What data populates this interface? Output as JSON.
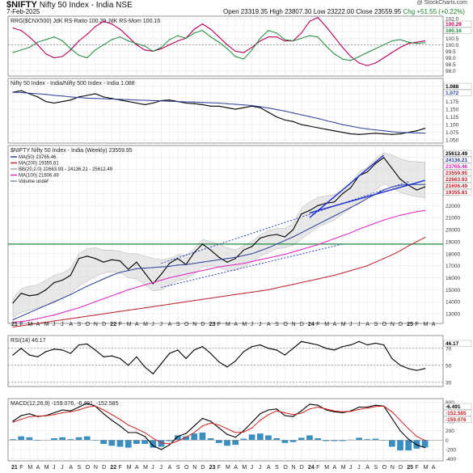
{
  "header": {
    "symbol": "$NIFTY",
    "name": "Nifty 50 Index - India NSE",
    "date": "7-Feb-2025",
    "watermark": "@ StockCharts.com",
    "open": "Open 23319.35",
    "high": "High 23807.30",
    "low": "Low 23222.00",
    "close": "Close 23559.95",
    "chg": "Chg +51.55 (+0.22%)",
    "chg_color": "#1a7f2a"
  },
  "x_axis": {
    "labels": [
      "21",
      "F",
      "M",
      "A",
      "M",
      "J",
      "J",
      "A",
      "S",
      "O",
      "N",
      "D",
      "22",
      "F",
      "M",
      "A",
      "M",
      "J",
      "J",
      "A",
      "S",
      "O",
      "N",
      "D",
      "23",
      "F",
      "M",
      "A",
      "M",
      "J",
      "J",
      "A",
      "S",
      "O",
      "N",
      "D",
      "24",
      "F",
      "M",
      "A",
      "M",
      "J",
      "J",
      "A",
      "S",
      "O",
      "N",
      "D",
      "25",
      "F",
      "M",
      "A"
    ],
    "bold": [
      "21",
      "22",
      "23",
      "24",
      "25"
    ]
  },
  "chart_data": [
    {
      "type": "line",
      "title": "RRG($CNX500) JdK RS-Ratio 100.29 JdK RS-Mom 100.16",
      "ylim": [
        97.6,
        102.2
      ],
      "yticks": [
        "102.0",
        "101.5",
        "101.0",
        "100.5",
        "100.0",
        "99.5",
        "99.0",
        "98.5",
        "98.0"
      ],
      "ytick_values": [
        102.0,
        101.5,
        101.0,
        100.5,
        100.0,
        99.5,
        99.0,
        98.5,
        98.0
      ],
      "last_labels": [
        "100.29",
        "100.16"
      ],
      "series": [
        {
          "name": "JdK RS-Ratio",
          "color": "#b8005a",
          "values": [
            101.3,
            101.1,
            100.6,
            100.0,
            99.3,
            99.0,
            99.1,
            99.6,
            100.3,
            100.8,
            101.4,
            101.8,
            101.6,
            101.2,
            100.6,
            100.0,
            99.6,
            99.5,
            99.7,
            100.0,
            100.3,
            100.5,
            101.2,
            101.6,
            101.2,
            100.6,
            100.0,
            99.5,
            99.4,
            99.8,
            100.3,
            100.6,
            100.6,
            100.3,
            100.3,
            100.9,
            101.8,
            102.1,
            101.4,
            100.6,
            99.8,
            99.1,
            98.6,
            98.4,
            98.6,
            99.0,
            99.4,
            99.8,
            100.1,
            100.2,
            100.3
          ]
        },
        {
          "name": "JdK RS-Mom",
          "color": "#1a8a3a",
          "values": [
            99.4,
            99.6,
            99.8,
            100.2,
            100.4,
            100.6,
            100.3,
            99.7,
            99.2,
            99.0,
            99.6,
            100.0,
            100.4,
            100.6,
            100.3,
            100.1,
            99.9,
            99.5,
            99.8,
            100.4,
            100.7,
            100.5,
            100.9,
            101.1,
            100.6,
            100.2,
            99.7,
            99.1,
            98.9,
            99.6,
            100.5,
            101.1,
            100.9,
            100.4,
            100.3,
            100.5,
            100.7,
            100.6,
            99.9,
            99.3,
            98.9,
            98.8,
            99.1,
            99.4,
            99.7,
            100.0,
            100.3,
            100.4,
            100.2,
            100.1,
            100.16
          ]
        }
      ],
      "reference_lines": [
        100.0
      ]
    },
    {
      "type": "line",
      "title": "Nifty 50 Index - India/Nifty 500 Index - India 1.088",
      "ylim": [
        1.04,
        1.25
      ],
      "yticks": [
        "1.225",
        "1.200",
        "1.175",
        "1.150",
        "1.125",
        "1.100",
        "1.075",
        "1.050"
      ],
      "ytick_values": [
        1.225,
        1.2,
        1.175,
        1.15,
        1.125,
        1.1,
        1.075,
        1.05
      ],
      "last_labels": [
        "1.088",
        "1.072"
      ],
      "series": [
        {
          "name": "Nifty 50 Index - India/Nifty 500 Index - India",
          "color": "#000000",
          "values": [
            1.205,
            1.21,
            1.2,
            1.19,
            1.175,
            1.17,
            1.175,
            1.18,
            1.19,
            1.195,
            1.2,
            1.19,
            1.185,
            1.18,
            1.175,
            1.17,
            1.165,
            1.17,
            1.178,
            1.18,
            1.175,
            1.17,
            1.168,
            1.165,
            1.16,
            1.16,
            1.155,
            1.15,
            1.155,
            1.16,
            1.155,
            1.14,
            1.125,
            1.115,
            1.11,
            1.1,
            1.095,
            1.09,
            1.085,
            1.08,
            1.075,
            1.07,
            1.068,
            1.07,
            1.072,
            1.07,
            1.068,
            1.07,
            1.075,
            1.08,
            1.088
          ]
        },
        {
          "name": "MA(50) 1.072",
          "color": "#2b3d9a",
          "values": [
            1.205,
            1.204,
            1.202,
            1.2,
            1.198,
            1.195,
            1.193,
            1.19,
            1.188,
            1.186,
            1.185,
            1.184,
            1.183,
            1.182,
            1.181,
            1.18,
            1.179,
            1.178,
            1.177,
            1.176,
            1.175,
            1.174,
            1.173,
            1.172,
            1.171,
            1.17,
            1.168,
            1.166,
            1.164,
            1.162,
            1.158,
            1.154,
            1.149,
            1.144,
            1.138,
            1.132,
            1.126,
            1.12,
            1.113,
            1.107,
            1.1,
            1.095,
            1.09,
            1.086,
            1.083,
            1.08,
            1.077,
            1.075,
            1.074,
            1.073,
            1.072
          ]
        }
      ]
    },
    {
      "type": "line",
      "title": "$NIFTY Nifty 50 Index - India (Weekly) 23559.95",
      "legend": [
        {
          "label": "MA(50) 23765.46",
          "color": "#2b3d9a"
        },
        {
          "label": "MA(200) 19355.81",
          "color": "#c0202a"
        },
        {
          "label": "BB(20,2.0) 22663.93 - 24136.21 - 25612.49",
          "color": "#a0a0a0"
        },
        {
          "label": "MA(100) 21606.49",
          "color": "#e020c0"
        },
        {
          "label": "Volume undef",
          "color": "#7a8a9a"
        }
      ],
      "ylim": [
        12200,
        27000
      ],
      "yticks": [
        "26000",
        "25000",
        "24000",
        "23000",
        "22000",
        "21000",
        "20000",
        "19000",
        "18000",
        "17000",
        "16000",
        "15000",
        "14000",
        "13000"
      ],
      "ytick_values": [
        26000,
        25000,
        24000,
        23000,
        22000,
        21000,
        20000,
        19000,
        18000,
        17000,
        16000,
        15000,
        14000,
        13000
      ],
      "last_labels": [
        "25612.49",
        "24136.21",
        "23765.46",
        "23559.95",
        "22663.93",
        "21606.49",
        "19355.81"
      ],
      "series": [
        {
          "name": "Close",
          "color": "#000000",
          "values": [
            13900,
            14700,
            14500,
            14600,
            15000,
            15600,
            15800,
            16200,
            17600,
            17800,
            17600,
            17300,
            17500,
            17400,
            16700,
            17300,
            16400,
            15500,
            16300,
            17200,
            17600,
            17100,
            18100,
            18800,
            18300,
            17700,
            17300,
            17600,
            18300,
            18600,
            19300,
            19500,
            19600,
            19400,
            20000,
            21300,
            21600,
            22000,
            22200,
            22300,
            23000,
            23500,
            24500,
            24800,
            25500,
            26000,
            25100,
            24200,
            23700,
            23300,
            23559.95
          ]
        },
        {
          "name": "MA(50)",
          "color": "#2b3d9a",
          "values": [
            12500,
            12800,
            13100,
            13400,
            13700,
            14000,
            14300,
            14600,
            14950,
            15300,
            15600,
            15900,
            16200,
            16450,
            16600,
            16750,
            16800,
            16850,
            16900,
            16950,
            17050,
            17100,
            17200,
            17300,
            17400,
            17500,
            17600,
            17700,
            17850,
            18000,
            18250,
            18500,
            18800,
            19100,
            19400,
            19750,
            20100,
            20450,
            20800,
            21150,
            21500,
            21850,
            22200,
            22600,
            22950,
            23300,
            23550,
            23700,
            23750,
            23760,
            23765
          ]
        },
        {
          "name": "MA(100)",
          "color": "#e020c0",
          "values": [
            12300,
            12350,
            12450,
            12600,
            12750,
            12900,
            13100,
            13300,
            13500,
            13750,
            14000,
            14250,
            14500,
            14750,
            15000,
            15200,
            15400,
            15600,
            15800,
            16000,
            16150,
            16300,
            16450,
            16600,
            16750,
            16900,
            17000,
            17100,
            17200,
            17350,
            17500,
            17650,
            17800,
            17950,
            18150,
            18350,
            18550,
            18750,
            19000,
            19250,
            19500,
            19750,
            20050,
            20300,
            20550,
            20800,
            21000,
            21200,
            21350,
            21500,
            21606
          ]
        },
        {
          "name": "MA(200)",
          "color": "#c0202a",
          "values": [
            11900,
            12000,
            12100,
            12200,
            12300,
            12400,
            12500,
            12600,
            12700,
            12800,
            12900,
            13000,
            13100,
            13200,
            13300,
            13400,
            13500,
            13600,
            13700,
            13800,
            13900,
            14000,
            14100,
            14200,
            14300,
            14400,
            14500,
            14600,
            14700,
            14800,
            14900,
            15000,
            15150,
            15300,
            15450,
            15600,
            15750,
            15900,
            16050,
            16200,
            16400,
            16600,
            16800,
            17000,
            17300,
            17600,
            17900,
            18250,
            18650,
            19000,
            19355
          ]
        }
      ],
      "bollinger_upper": [
        14300,
        15100,
        15300,
        15400,
        15800,
        16200,
        16400,
        16800,
        18000,
        18400,
        18500,
        18300,
        18300,
        18200,
        18000,
        18000,
        17800,
        17600,
        17500,
        17600,
        17900,
        17900,
        18400,
        19200,
        19000,
        18800,
        18500,
        18300,
        18700,
        19000,
        19600,
        19900,
        20100,
        20100,
        20500,
        21800,
        22300,
        22700,
        22800,
        22900,
        23300,
        23800,
        24800,
        25200,
        25900,
        26400,
        26200,
        25900,
        25700,
        25650,
        25612
      ],
      "bollinger_lower": [
        12700,
        13100,
        13300,
        13500,
        13700,
        13900,
        14300,
        14700,
        15300,
        15700,
        16100,
        16400,
        16500,
        16400,
        16000,
        15900,
        15400,
        14900,
        15000,
        15400,
        15800,
        15900,
        16300,
        16900,
        17000,
        16900,
        16600,
        16600,
        16900,
        17300,
        17800,
        18100,
        18400,
        18500,
        18700,
        19200,
        19700,
        20200,
        20500,
        20800,
        21300,
        21800,
        22300,
        22700,
        23300,
        23800,
        23500,
        23100,
        22900,
        22750,
        22664
      ],
      "horizontal_line": {
        "value": 18800,
        "color": "#1e8a3a"
      },
      "annotations": "trendlines"
    },
    {
      "type": "line",
      "title": "RSI(14) 46.17",
      "ylim": [
        25,
        85
      ],
      "yticks": [
        "70",
        "50",
        "30"
      ],
      "ytick_values": [
        70,
        50,
        30
      ],
      "last_labels": [
        "46.17"
      ],
      "series": [
        {
          "name": "RSI(14)",
          "color": "#000000",
          "values": [
            62,
            70,
            62,
            60,
            66,
            69,
            68,
            64,
            74,
            75,
            68,
            60,
            61,
            58,
            50,
            60,
            48,
            40,
            52,
            64,
            68,
            58,
            68,
            72,
            64,
            54,
            48,
            55,
            66,
            72,
            74,
            70,
            68,
            62,
            70,
            78,
            76,
            74,
            70,
            68,
            72,
            74,
            78,
            74,
            76,
            74,
            58,
            50,
            46,
            44,
            46.17
          ]
        }
      ],
      "reference_lines": [
        70,
        50,
        30
      ]
    },
    {
      "type": "line",
      "title": "MACD(12,26,9) -159.076, -6.491, -152.585",
      "ylim": [
        -440,
        880
      ],
      "yticks": [
        "800",
        "600",
        "400",
        "200",
        "0",
        "-200",
        "-400"
      ],
      "ytick_values": [
        800,
        600,
        400,
        200,
        0,
        -200,
        -400
      ],
      "last_labels": [
        "-6.491",
        "-152.585",
        "-159.076"
      ],
      "series": [
        {
          "name": "MACD",
          "color": "#000000",
          "values": [
            400,
            520,
            560,
            500,
            520,
            580,
            640,
            620,
            700,
            780,
            720,
            560,
            420,
            300,
            160,
            160,
            80,
            -120,
            -200,
            -100,
            80,
            140,
            300,
            460,
            400,
            260,
            120,
            60,
            200,
            380,
            560,
            640,
            660,
            520,
            500,
            620,
            760,
            740,
            640,
            600,
            580,
            620,
            700,
            700,
            740,
            720,
            460,
            200,
            20,
            -100,
            -159
          ]
        },
        {
          "name": "Signal",
          "color": "#d02020",
          "values": [
            380,
            440,
            500,
            510,
            515,
            540,
            580,
            600,
            640,
            700,
            720,
            640,
            540,
            440,
            320,
            240,
            160,
            40,
            -60,
            -80,
            -20,
            60,
            160,
            300,
            360,
            320,
            240,
            160,
            170,
            260,
            420,
            540,
            620,
            580,
            540,
            570,
            660,
            700,
            660,
            620,
            600,
            610,
            650,
            680,
            710,
            720,
            600,
            420,
            240,
            80,
            -6
          ]
        }
      ],
      "histogram": [
        20,
        80,
        60,
        -10,
        5,
        40,
        60,
        20,
        60,
        80,
        0,
        -80,
        -120,
        -140,
        -160,
        -80,
        -80,
        -160,
        -140,
        -20,
        100,
        80,
        140,
        160,
        40,
        -60,
        -120,
        -100,
        30,
        120,
        140,
        100,
        40,
        -60,
        -40,
        50,
        100,
        40,
        -20,
        -20,
        -20,
        10,
        50,
        20,
        30,
        0,
        -140,
        -220,
        -220,
        -180,
        -153
      ]
    }
  ]
}
